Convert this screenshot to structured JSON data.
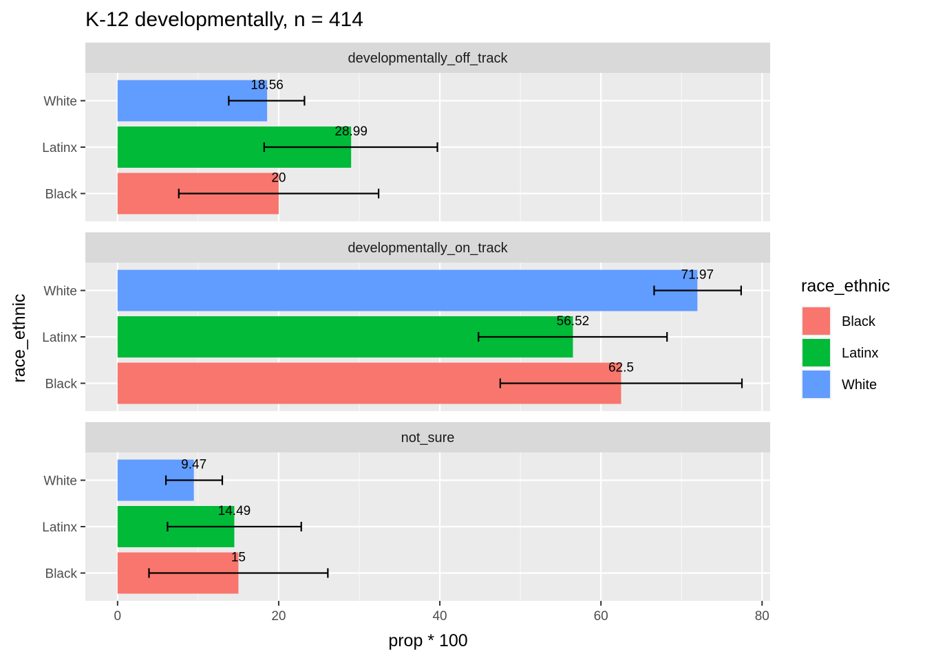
{
  "chart_data": {
    "type": "bar",
    "orientation": "horizontal",
    "title": "K-12 developmentally, n = 414",
    "xlabel": "prop * 100",
    "ylabel": "race_ethnic",
    "xlim": [
      -4,
      81
    ],
    "x_ticks": [
      0,
      20,
      40,
      60,
      80
    ],
    "x_tick_labels": [
      "0",
      "20",
      "40",
      "60",
      "80"
    ],
    "categories": [
      "White",
      "Latinx",
      "Black"
    ],
    "legend": {
      "title": "race_ethnic",
      "position": "right",
      "entries": [
        {
          "name": "Black",
          "color": "#F8766D"
        },
        {
          "name": "Latinx",
          "color": "#00BA38"
        },
        {
          "name": "White",
          "color": "#619CFF"
        }
      ]
    },
    "panels": [
      {
        "strip": "developmentally_off_track",
        "bars": [
          {
            "category": "White",
            "value": 18.56,
            "label": "18.56",
            "err_low": 13.8,
            "err_high": 23.2
          },
          {
            "category": "Latinx",
            "value": 28.99,
            "label": "28.99",
            "err_low": 18.2,
            "err_high": 39.7
          },
          {
            "category": "Black",
            "value": 20,
            "label": "20",
            "err_low": 7.6,
            "err_high": 32.4
          }
        ]
      },
      {
        "strip": "developmentally_on_track",
        "bars": [
          {
            "category": "White",
            "value": 71.97,
            "label": "71.97",
            "err_low": 66.6,
            "err_high": 77.4
          },
          {
            "category": "Latinx",
            "value": 56.52,
            "label": "56.52",
            "err_low": 44.8,
            "err_high": 68.2
          },
          {
            "category": "Black",
            "value": 62.5,
            "label": "62.5",
            "err_low": 47.5,
            "err_high": 77.5
          }
        ]
      },
      {
        "strip": "not_sure",
        "bars": [
          {
            "category": "White",
            "value": 9.47,
            "label": "9.47",
            "err_low": 6.0,
            "err_high": 13.0
          },
          {
            "category": "Latinx",
            "value": 14.49,
            "label": "14.49",
            "err_low": 6.2,
            "err_high": 22.8
          },
          {
            "category": "Black",
            "value": 15,
            "label": "15",
            "err_low": 3.9,
            "err_high": 26.1
          }
        ]
      }
    ],
    "grid": true
  }
}
